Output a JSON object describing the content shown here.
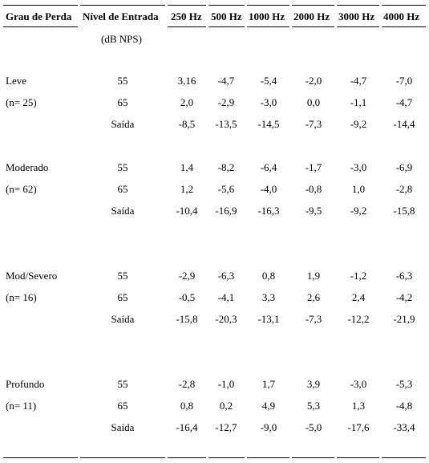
{
  "table": {
    "headers": {
      "grau": "Grau de Perda",
      "nivel": "Nível de Entrada",
      "nivel_unit": "(dB NPS)",
      "f250": "250 Hz",
      "f500": "500 Hz",
      "f1000": "1000 Hz",
      "f2000": "2000 Hz",
      "f3000": "3000 Hz",
      "f4000": "4000 Hz"
    },
    "groups": [
      {
        "name": "Leve",
        "n": "(n= 25)",
        "rows": [
          {
            "nivel": "55",
            "v": [
              "3,16",
              "-4,7",
              "-5,4",
              "-2,0",
              "-4,7",
              "-7,0"
            ]
          },
          {
            "nivel": "65",
            "v": [
              "2,0",
              "-2,9",
              "-3,0",
              "0,0",
              "-1,1",
              "-4,7"
            ]
          },
          {
            "nivel": "Saída",
            "v": [
              "-8,5",
              "-13,5",
              "-14,5",
              "-7,3",
              "-9,2",
              "-14,4"
            ]
          }
        ]
      },
      {
        "name": "Moderado",
        "n": "(n= 62)",
        "rows": [
          {
            "nivel": "55",
            "v": [
              "1,4",
              "-8,2",
              "-6,4",
              "-1,7",
              "-3,0",
              "-6,9"
            ]
          },
          {
            "nivel": "65",
            "v": [
              "1,2",
              "-5,6",
              "-4,0",
              "-0,8",
              "1,0",
              "-2,8"
            ]
          },
          {
            "nivel": "Saída",
            "v": [
              "-10,4",
              "-16,9",
              "-16,3",
              "-9,5",
              "-9,2",
              "-15,8"
            ]
          }
        ]
      },
      {
        "name": "Mod/Severo",
        "n": "(n= 16)",
        "rows": [
          {
            "nivel": "55",
            "v": [
              "-2,9",
              "-6,3",
              "0,8",
              "1,9",
              "-1,2",
              "-6,3"
            ]
          },
          {
            "nivel": "65",
            "v": [
              "-0,5",
              "-4,1",
              "3,3",
              "2,6",
              "2,4",
              "-4,2"
            ]
          },
          {
            "nivel": "Saída",
            "v": [
              "-15,8",
              "-20,3",
              "-13,1",
              "-7,3",
              "-12,2",
              "-21,9"
            ]
          }
        ]
      },
      {
        "name": "Profundo",
        "n": "(n= 11)",
        "rows": [
          {
            "nivel": "55",
            "v": [
              "-2,8",
              "-1,0",
              "1,7",
              "3,9",
              "-3,0",
              "-5,3"
            ]
          },
          {
            "nivel": "65",
            "v": [
              "0,8",
              "0,2",
              "4,9",
              "5,3",
              "1,3",
              "-4,8"
            ]
          },
          {
            "nivel": "Saída",
            "v": [
              "-16,4",
              "-12,7",
              "-9,0",
              "-5,0",
              "-17,6",
              "-33,4"
            ]
          }
        ]
      }
    ]
  }
}
